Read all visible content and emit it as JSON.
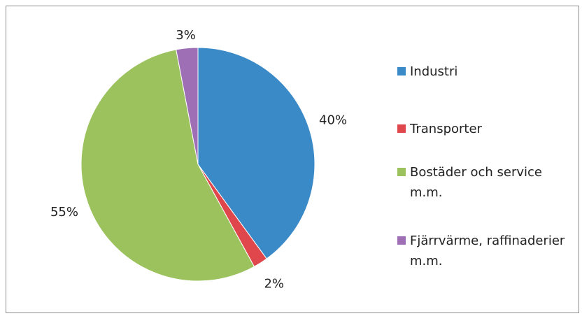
{
  "chart_data": {
    "type": "pie",
    "categories": [
      "Industri",
      "Transporter",
      "Bostäder och service m.m.",
      "Fjärrvärme, raffinaderier m.m."
    ],
    "values": [
      40,
      2,
      55,
      3
    ],
    "value_labels": [
      "40%",
      "2%",
      "55%",
      "3%"
    ],
    "colors": [
      "#3a8ac8",
      "#e0474c",
      "#9bc25c",
      "#9e6fb5"
    ],
    "legend": "right"
  }
}
